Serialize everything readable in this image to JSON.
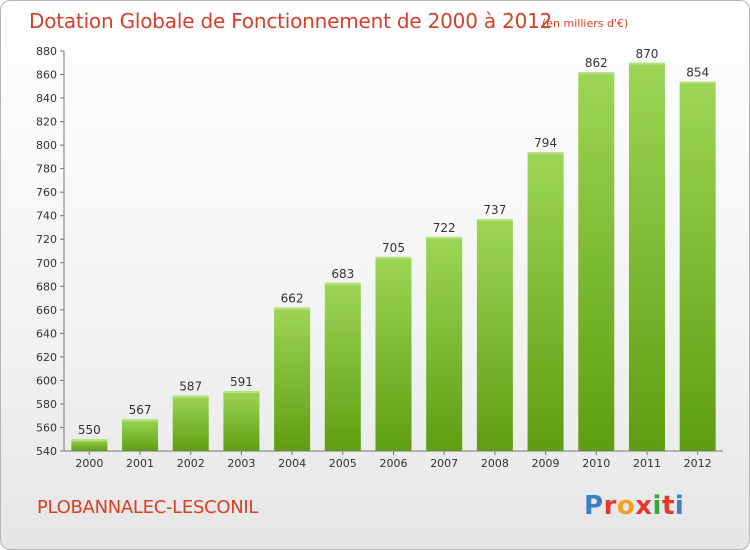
{
  "header": {
    "title": "Dotation Globale de Fonctionnement de 2000 à 2012",
    "subtitle": "(en milliers d'€)"
  },
  "footer": {
    "commune": "PLOBANNALEC-LESCONIL",
    "logo": "Proxiti",
    "logo_colors": [
      "#3a82c4",
      "#e23b2e",
      "#f2a21c",
      "#e23b2e",
      "#3aa53a",
      "#e23b2e",
      "#3a82c4"
    ]
  },
  "chart_data": {
    "type": "bar",
    "categories": [
      "2000",
      "2001",
      "2002",
      "2003",
      "2004",
      "2005",
      "2006",
      "2007",
      "2008",
      "2009",
      "2010",
      "2011",
      "2012"
    ],
    "values": [
      550,
      567,
      587,
      591,
      662,
      683,
      705,
      722,
      737,
      794,
      862,
      870,
      854
    ],
    "title": "Dotation Globale de Fonctionnement de 2000 à 2012",
    "subtitle": "(en milliers d'€)",
    "ylim": [
      540,
      880
    ],
    "yticks": [
      540,
      560,
      580,
      600,
      620,
      640,
      660,
      680,
      700,
      720,
      740,
      760,
      780,
      800,
      820,
      840,
      860,
      880
    ],
    "grid": false,
    "colors": {
      "bar_top": "#9dd657",
      "bar_bottom": "#5e9e10",
      "axis": "#777777",
      "text": "#333333"
    }
  }
}
